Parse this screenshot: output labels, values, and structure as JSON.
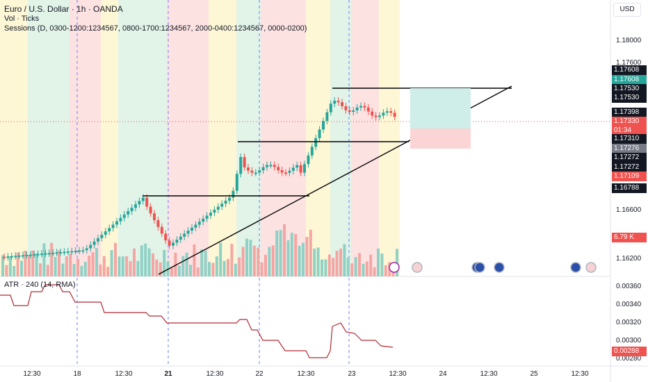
{
  "header": {
    "symbol_title": "Euro / U.S. Dollar · 1h · OANDA",
    "volume_legend": "Vol · Ticks",
    "sessions_legend": "Sessions (D, 0300-1200:1234567, 0800-1700:1234567, 2000-0400:1234567, 0000-0200)"
  },
  "toolbar": {
    "currency_label": "USD"
  },
  "atr": {
    "legend": "ATR · 240 (14, RMA)"
  },
  "price_axis": {
    "ticks": [
      "1.18000",
      "1.17600",
      "1.16600",
      "1.16200"
    ],
    "tags": [
      {
        "text": "1.17608",
        "bg": "#131722"
      },
      {
        "text": "1.17608",
        "bg": "#26a69a"
      },
      {
        "text": "1.17530",
        "bg": "#131722"
      },
      {
        "text": "1.17530",
        "bg": "#131722"
      },
      {
        "text": "1.17398",
        "bg": "#131722"
      },
      {
        "text": "1.17330",
        "bg": "#ef5350"
      },
      {
        "text": "01:34",
        "bg": "#ef5350"
      },
      {
        "text": "1.17310",
        "bg": "#131722"
      },
      {
        "text": "1.17276",
        "bg": "#787b86"
      },
      {
        "text": "1.17272",
        "bg": "#131722"
      },
      {
        "text": "1.17272",
        "bg": "#131722"
      },
      {
        "text": "1.17109",
        "bg": "#ef5350"
      },
      {
        "text": "1.16788",
        "bg": "#131722"
      },
      {
        "text": "6.79 K",
        "bg": "#ef5350"
      }
    ]
  },
  "atr_axis": {
    "ticks": [
      "0.00360",
      "0.00340",
      "0.00320",
      "0.00300",
      "0.00280"
    ],
    "tag": {
      "text": "0.00288",
      "bg": "#ef5350"
    }
  },
  "time_axis": {
    "labels": [
      {
        "text": "12:30",
        "bold": false
      },
      {
        "text": "18",
        "bold": false
      },
      {
        "text": "12:30",
        "bold": false
      },
      {
        "text": "21",
        "bold": true
      },
      {
        "text": "12:30",
        "bold": false
      },
      {
        "text": "22",
        "bold": false
      },
      {
        "text": "12:30",
        "bold": false
      },
      {
        "text": "23",
        "bold": false
      },
      {
        "text": "12:30",
        "bold": false
      },
      {
        "text": "24",
        "bold": false
      },
      {
        "text": "12:30",
        "bold": false
      },
      {
        "text": "25",
        "bold": false
      },
      {
        "text": "12:30",
        "bold": false
      }
    ]
  },
  "colors": {
    "up": "#26a69a",
    "down": "#ef5350",
    "trendline": "#000000",
    "session_red": "#fde2e2",
    "session_green": "#e2f3e8",
    "session_yellow": "#fdf7d6"
  },
  "event_icons": [
    "lightning-icon",
    "us-flag-icon",
    "eu-flag-icon",
    "eu-flag-icon",
    "eu-flag-icon",
    "eu-flag-icon",
    "us-flag-icon"
  ]
}
